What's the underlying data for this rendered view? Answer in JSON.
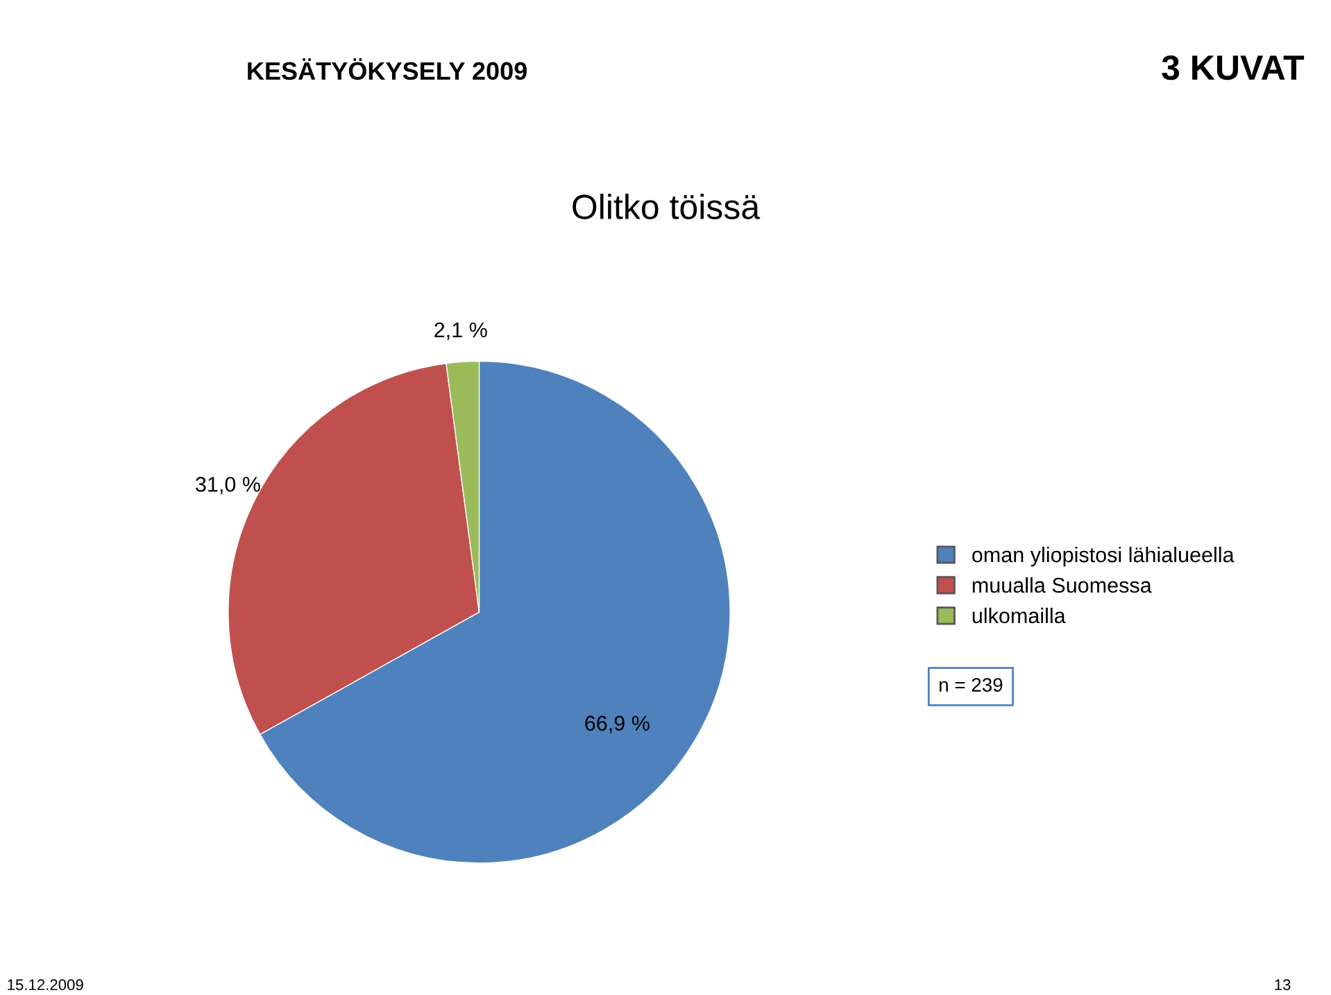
{
  "chart_data": {
    "type": "pie",
    "title": "Olitko töissä",
    "categories": [
      "oman yliopistosi lähialueella",
      "muualla Suomessa",
      "ulkomailla"
    ],
    "values": [
      66.9,
      31.0,
      2.1
    ],
    "value_labels": [
      "66,9 %",
      "31,0 %",
      "2,1 %"
    ],
    "colors": [
      "#4f81bd",
      "#c0504d",
      "#9bbb59"
    ],
    "legend": "right",
    "annotations": [
      "KESÄTYÖKYSELY 2009",
      "3 KUVAT",
      "n = 239",
      "15.12.2009",
      "13"
    ]
  }
}
